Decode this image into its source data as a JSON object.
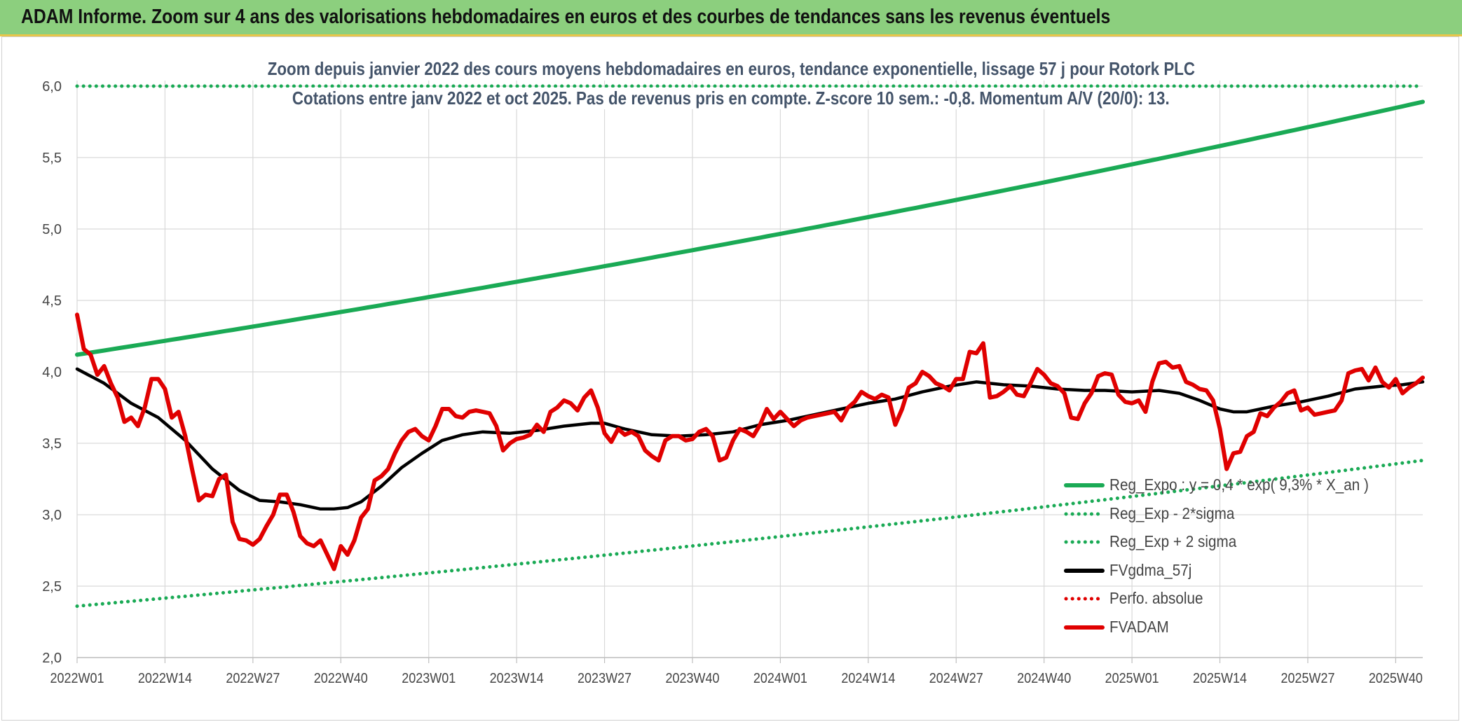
{
  "banner": {
    "title": "ADAM Informe. Zoom sur 4 ans des valorisations hebdomadaires en euros et des courbes de tendances sans les revenus éventuels"
  },
  "chart_data": {
    "type": "line",
    "title": "Zoom depuis janvier 2022 des cours moyens hebdomadaires en euros, tendance exponentielle, lissage 57 j pour Rotork PLC",
    "subtitle": "Cotations entre janv 2022 et oct 2025. Pas de revenus pris en compte. Z-score 10 sem.: -0,8. Momentum A/V (20/0): 13.",
    "xlabel": "",
    "ylabel": "",
    "ylim": [
      2.0,
      6.0
    ],
    "yticks": [
      "2,0",
      "2,5",
      "3,0",
      "3,5",
      "4,0",
      "4,5",
      "5,0",
      "5,5",
      "6,0"
    ],
    "ytick_values": [
      2.0,
      2.5,
      3.0,
      3.5,
      4.0,
      4.5,
      5.0,
      5.5,
      6.0
    ],
    "xticks": [
      "2022W01",
      "2022W14",
      "2022W27",
      "2022W40",
      "2023W01",
      "2023W14",
      "2023W27",
      "2023W40",
      "2024W01",
      "2024W14",
      "2024W27",
      "2024W40",
      "2025W01",
      "2025W14",
      "2025W27",
      "2025W40"
    ],
    "xtick_index": [
      0,
      13,
      26,
      39,
      52,
      65,
      78,
      91,
      104,
      117,
      130,
      143,
      156,
      169,
      182,
      195
    ],
    "x_count": 200,
    "grid": true,
    "legend_position": "bottom-right",
    "series": [
      {
        "name": "Reg_Expo : y = 0,4 * exp( 9,3% *  X_an )",
        "style": "solid",
        "color": "#1aaa55",
        "start": 4.12,
        "end": 5.89
      },
      {
        "name": "Reg_Exp - 2*sigma",
        "style": "dotted",
        "color": "#1aaa55",
        "start": 2.36,
        "end": 3.38
      },
      {
        "name": "Reg_Exp + 2 sigma",
        "style": "dotted",
        "color": "#1aaa55",
        "start": 6.0,
        "end": 6.0
      },
      {
        "name": "FVgdma_57j",
        "style": "solid",
        "color": "#000000",
        "points": [
          [
            0,
            4.02
          ],
          [
            4,
            3.92
          ],
          [
            8,
            3.78
          ],
          [
            12,
            3.68
          ],
          [
            16,
            3.52
          ],
          [
            20,
            3.32
          ],
          [
            24,
            3.17
          ],
          [
            27,
            3.1
          ],
          [
            30,
            3.09
          ],
          [
            33,
            3.07
          ],
          [
            36,
            3.04
          ],
          [
            38,
            3.04
          ],
          [
            40,
            3.05
          ],
          [
            42,
            3.09
          ],
          [
            45,
            3.2
          ],
          [
            48,
            3.33
          ],
          [
            51,
            3.43
          ],
          [
            54,
            3.52
          ],
          [
            57,
            3.56
          ],
          [
            60,
            3.58
          ],
          [
            64,
            3.57
          ],
          [
            68,
            3.59
          ],
          [
            72,
            3.62
          ],
          [
            76,
            3.64
          ],
          [
            78,
            3.64
          ],
          [
            81,
            3.6
          ],
          [
            85,
            3.56
          ],
          [
            89,
            3.55
          ],
          [
            93,
            3.56
          ],
          [
            97,
            3.58
          ],
          [
            101,
            3.63
          ],
          [
            105,
            3.66
          ],
          [
            109,
            3.7
          ],
          [
            113,
            3.74
          ],
          [
            117,
            3.78
          ],
          [
            121,
            3.81
          ],
          [
            125,
            3.86
          ],
          [
            129,
            3.9
          ],
          [
            133,
            3.93
          ],
          [
            137,
            3.91
          ],
          [
            141,
            3.9
          ],
          [
            145,
            3.88
          ],
          [
            149,
            3.87
          ],
          [
            152,
            3.87
          ],
          [
            156,
            3.86
          ],
          [
            160,
            3.87
          ],
          [
            163,
            3.85
          ],
          [
            166,
            3.8
          ],
          [
            169,
            3.74
          ],
          [
            171,
            3.72
          ],
          [
            173,
            3.72
          ],
          [
            177,
            3.76
          ],
          [
            181,
            3.79
          ],
          [
            185,
            3.83
          ],
          [
            189,
            3.88
          ],
          [
            193,
            3.9
          ],
          [
            196,
            3.91
          ],
          [
            199,
            3.93
          ]
        ]
      },
      {
        "name": "Perfo. absolue",
        "style": "dotted",
        "color": "#e00000",
        "points": []
      },
      {
        "name": "FVADAM",
        "style": "solid",
        "color": "#e00000",
        "points": [
          [
            0,
            4.4
          ],
          [
            1,
            4.16
          ],
          [
            2,
            4.12
          ],
          [
            3,
            3.98
          ],
          [
            4,
            4.04
          ],
          [
            5,
            3.92
          ],
          [
            6,
            3.82
          ],
          [
            7,
            3.65
          ],
          [
            8,
            3.68
          ],
          [
            9,
            3.62
          ],
          [
            10,
            3.75
          ],
          [
            11,
            3.95
          ],
          [
            12,
            3.95
          ],
          [
            13,
            3.88
          ],
          [
            14,
            3.68
          ],
          [
            15,
            3.72
          ],
          [
            16,
            3.55
          ],
          [
            17,
            3.32
          ],
          [
            18,
            3.1
          ],
          [
            19,
            3.14
          ],
          [
            20,
            3.13
          ],
          [
            21,
            3.25
          ],
          [
            22,
            3.28
          ],
          [
            23,
            2.95
          ],
          [
            24,
            2.83
          ],
          [
            25,
            2.82
          ],
          [
            26,
            2.79
          ],
          [
            27,
            2.83
          ],
          [
            28,
            2.92
          ],
          [
            29,
            3.0
          ],
          [
            30,
            3.14
          ],
          [
            31,
            3.14
          ],
          [
            32,
            3.02
          ],
          [
            33,
            2.85
          ],
          [
            34,
            2.8
          ],
          [
            35,
            2.78
          ],
          [
            36,
            2.82
          ],
          [
            37,
            2.72
          ],
          [
            38,
            2.62
          ],
          [
            39,
            2.78
          ],
          [
            40,
            2.72
          ],
          [
            41,
            2.82
          ],
          [
            42,
            2.98
          ],
          [
            43,
            3.04
          ],
          [
            44,
            3.24
          ],
          [
            45,
            3.27
          ],
          [
            46,
            3.32
          ],
          [
            47,
            3.43
          ],
          [
            48,
            3.52
          ],
          [
            49,
            3.58
          ],
          [
            50,
            3.6
          ],
          [
            51,
            3.55
          ],
          [
            52,
            3.52
          ],
          [
            53,
            3.62
          ],
          [
            54,
            3.74
          ],
          [
            55,
            3.74
          ],
          [
            56,
            3.69
          ],
          [
            57,
            3.68
          ],
          [
            58,
            3.72
          ],
          [
            59,
            3.73
          ],
          [
            60,
            3.72
          ],
          [
            61,
            3.71
          ],
          [
            62,
            3.62
          ],
          [
            63,
            3.45
          ],
          [
            64,
            3.5
          ],
          [
            65,
            3.53
          ],
          [
            66,
            3.54
          ],
          [
            67,
            3.56
          ],
          [
            68,
            3.63
          ],
          [
            69,
            3.58
          ],
          [
            70,
            3.72
          ],
          [
            71,
            3.75
          ],
          [
            72,
            3.8
          ],
          [
            73,
            3.78
          ],
          [
            74,
            3.73
          ],
          [
            75,
            3.82
          ],
          [
            76,
            3.87
          ],
          [
            77,
            3.75
          ],
          [
            78,
            3.57
          ],
          [
            79,
            3.51
          ],
          [
            80,
            3.6
          ],
          [
            81,
            3.56
          ],
          [
            82,
            3.58
          ],
          [
            83,
            3.55
          ],
          [
            84,
            3.45
          ],
          [
            85,
            3.41
          ],
          [
            86,
            3.38
          ],
          [
            87,
            3.52
          ],
          [
            88,
            3.55
          ],
          [
            89,
            3.55
          ],
          [
            90,
            3.52
          ],
          [
            91,
            3.53
          ],
          [
            92,
            3.58
          ],
          [
            93,
            3.6
          ],
          [
            94,
            3.55
          ],
          [
            95,
            3.38
          ],
          [
            96,
            3.4
          ],
          [
            97,
            3.52
          ],
          [
            98,
            3.6
          ],
          [
            99,
            3.58
          ],
          [
            100,
            3.55
          ],
          [
            101,
            3.63
          ],
          [
            102,
            3.74
          ],
          [
            103,
            3.67
          ],
          [
            104,
            3.72
          ],
          [
            105,
            3.67
          ],
          [
            106,
            3.62
          ],
          [
            107,
            3.66
          ],
          [
            108,
            3.68
          ],
          [
            109,
            3.69
          ],
          [
            110,
            3.7
          ],
          [
            111,
            3.71
          ],
          [
            112,
            3.72
          ],
          [
            113,
            3.66
          ],
          [
            114,
            3.75
          ],
          [
            115,
            3.79
          ],
          [
            116,
            3.86
          ],
          [
            117,
            3.83
          ],
          [
            118,
            3.81
          ],
          [
            119,
            3.84
          ],
          [
            120,
            3.82
          ],
          [
            121,
            3.63
          ],
          [
            122,
            3.74
          ],
          [
            123,
            3.89
          ],
          [
            124,
            3.92
          ],
          [
            125,
            4.0
          ],
          [
            126,
            3.97
          ],
          [
            127,
            3.92
          ],
          [
            128,
            3.9
          ],
          [
            129,
            3.87
          ],
          [
            130,
            3.95
          ],
          [
            131,
            3.95
          ],
          [
            132,
            4.14
          ],
          [
            133,
            4.13
          ],
          [
            134,
            4.2
          ],
          [
            135,
            3.82
          ],
          [
            136,
            3.83
          ],
          [
            137,
            3.86
          ],
          [
            138,
            3.9
          ],
          [
            139,
            3.84
          ],
          [
            140,
            3.83
          ],
          [
            141,
            3.92
          ],
          [
            142,
            4.02
          ],
          [
            143,
            3.98
          ],
          [
            144,
            3.92
          ],
          [
            145,
            3.9
          ],
          [
            146,
            3.85
          ],
          [
            147,
            3.68
          ],
          [
            148,
            3.67
          ],
          [
            149,
            3.78
          ],
          [
            150,
            3.85
          ],
          [
            151,
            3.97
          ],
          [
            152,
            3.99
          ],
          [
            153,
            3.98
          ],
          [
            154,
            3.84
          ],
          [
            155,
            3.79
          ],
          [
            156,
            3.78
          ],
          [
            157,
            3.8
          ],
          [
            158,
            3.72
          ],
          [
            159,
            3.93
          ],
          [
            160,
            4.06
          ],
          [
            161,
            4.07
          ],
          [
            162,
            4.03
          ],
          [
            163,
            4.04
          ],
          [
            164,
            3.93
          ],
          [
            165,
            3.91
          ],
          [
            166,
            3.88
          ],
          [
            167,
            3.87
          ],
          [
            168,
            3.8
          ],
          [
            169,
            3.6
          ],
          [
            170,
            3.32
          ],
          [
            171,
            3.43
          ],
          [
            172,
            3.44
          ],
          [
            173,
            3.55
          ],
          [
            174,
            3.58
          ],
          [
            175,
            3.71
          ],
          [
            176,
            3.69
          ],
          [
            177,
            3.75
          ],
          [
            178,
            3.79
          ],
          [
            179,
            3.85
          ],
          [
            180,
            3.87
          ],
          [
            181,
            3.73
          ],
          [
            182,
            3.75
          ],
          [
            183,
            3.7
          ],
          [
            184,
            3.71
          ],
          [
            185,
            3.72
          ],
          [
            186,
            3.73
          ],
          [
            187,
            3.8
          ],
          [
            188,
            3.99
          ],
          [
            189,
            4.01
          ],
          [
            190,
            4.02
          ],
          [
            191,
            3.94
          ],
          [
            192,
            4.03
          ],
          [
            193,
            3.93
          ],
          [
            194,
            3.89
          ],
          [
            195,
            3.95
          ],
          [
            196,
            3.85
          ],
          [
            197,
            3.89
          ],
          [
            198,
            3.92
          ],
          [
            199,
            3.96
          ]
        ]
      }
    ]
  }
}
